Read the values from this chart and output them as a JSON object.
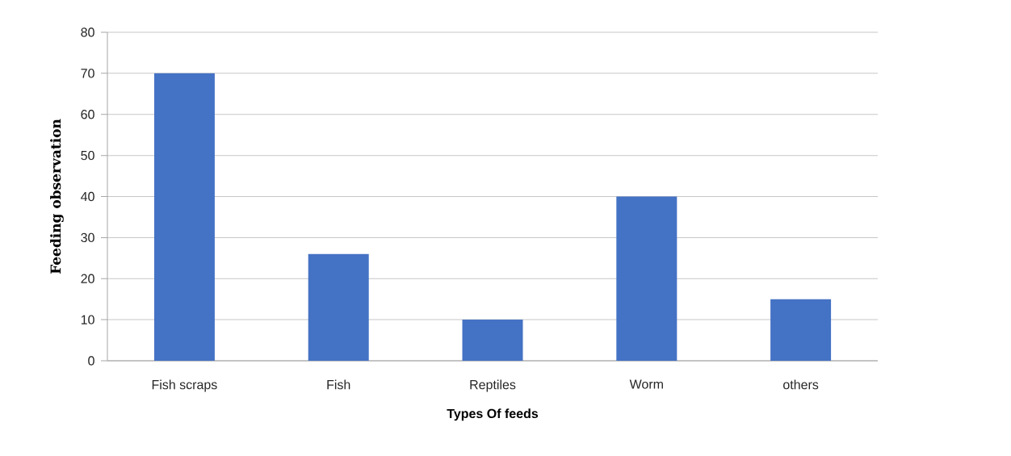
{
  "chart_data": {
    "type": "bar",
    "xlabel": "Types Of feeds",
    "ylabel": "Feeding observation",
    "categories": [
      "Fish scraps",
      "Fish",
      "Reptiles",
      "Worm",
      "others"
    ],
    "values": [
      70,
      26,
      10,
      40,
      15
    ],
    "color": "#4472c4",
    "ylim": [
      0,
      80
    ],
    "yticks": [
      0,
      10,
      20,
      30,
      40,
      50,
      60,
      70,
      80
    ],
    "grid": "y"
  }
}
